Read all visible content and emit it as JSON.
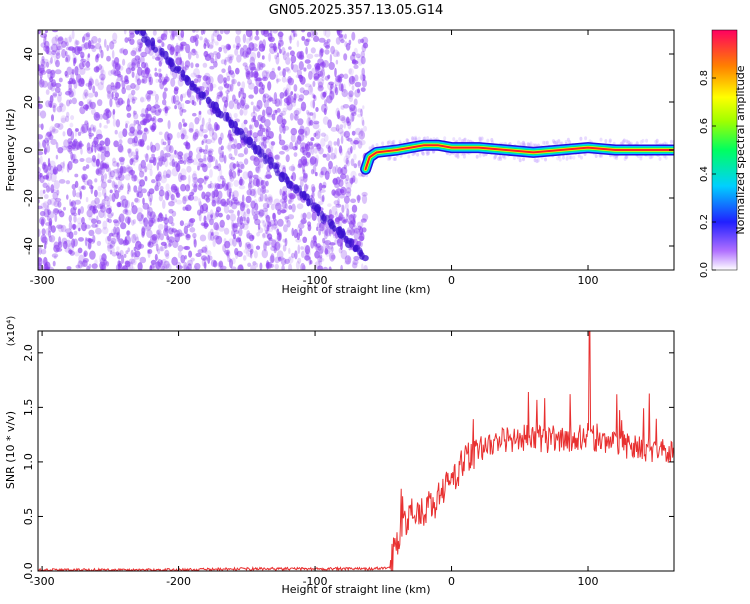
{
  "title": "GN05.2025.357.13.05.G14",
  "colors": {
    "spectrogram_noise": "#8a3cf0",
    "spectrogram_track": "#3a10d0",
    "snr_line": "#e83030",
    "axis": "#000000"
  },
  "chart_data": [
    {
      "type": "heatmap",
      "name": "spectrogram",
      "xlabel": "Height of straight line (km)",
      "ylabel": "Frequency (Hz)",
      "xlim": [
        -303,
        163
      ],
      "ylim": [
        -50,
        50
      ],
      "xticks": [
        -300,
        -200,
        -100,
        0,
        100
      ],
      "yticks": [
        -40,
        -20,
        0,
        20,
        40
      ],
      "noise_region_x": [
        -303,
        -63
      ],
      "diagonal_track": [
        [
          -230,
          50
        ],
        [
          -63,
          -45
        ]
      ],
      "signal_track": [
        [
          -63,
          -8
        ],
        [
          -60,
          -3
        ],
        [
          -55,
          -1
        ],
        [
          -40,
          0
        ],
        [
          -30,
          1
        ],
        [
          -20,
          2
        ],
        [
          -10,
          2
        ],
        [
          0,
          1
        ],
        [
          20,
          1
        ],
        [
          40,
          0
        ],
        [
          60,
          -1
        ],
        [
          80,
          0
        ],
        [
          100,
          1
        ],
        [
          120,
          0
        ],
        [
          140,
          0
        ],
        [
          163,
          0
        ]
      ],
      "colorbar": {
        "label": "Normalized spectral amplitude",
        "range": [
          0,
          1
        ],
        "ticks": [
          "0.0",
          "0.2",
          "0.4",
          "0.6",
          "0.8"
        ]
      }
    },
    {
      "type": "line",
      "name": "snr",
      "xlabel": "Height of straight line (km)",
      "ylabel": "SNR (10 * v/v)",
      "scale_note": "(x10⁴)",
      "xlim": [
        -303,
        163
      ],
      "ylim": [
        0,
        2.2
      ],
      "xticks": [
        -300,
        -200,
        -100,
        0,
        100
      ],
      "yticks": [
        "0.0",
        "0.5",
        "1.0",
        "1.5",
        "2.0"
      ],
      "series": [
        {
          "x": [
            -303,
            -250,
            -200,
            -150,
            -100,
            -60,
            -45,
            -40,
            -35,
            -30,
            -25,
            -20,
            -15,
            -10,
            -5,
            0,
            5,
            10,
            15,
            20,
            25,
            30,
            40,
            50,
            60,
            70,
            80,
            90,
            100,
            110,
            120,
            130,
            140,
            150,
            163
          ],
          "y": [
            0.01,
            0.01,
            0.01,
            0.02,
            0.02,
            0.02,
            0.03,
            0.3,
            0.4,
            0.5,
            0.55,
            0.55,
            0.6,
            0.65,
            0.75,
            0.85,
            0.92,
            1.0,
            1.05,
            1.12,
            1.15,
            1.18,
            1.2,
            1.22,
            1.22,
            1.2,
            1.2,
            1.22,
            1.25,
            1.18,
            1.15,
            1.15,
            1.12,
            1.1,
            1.1
          ]
        }
      ]
    }
  ]
}
